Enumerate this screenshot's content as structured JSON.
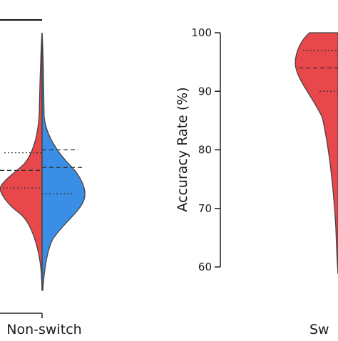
{
  "chart_data": [
    {
      "type": "violin",
      "categories": [
        "Non-switch"
      ],
      "split": true,
      "series": [
        {
          "color": "#e8474b",
          "quartiles": [
            73.5,
            76.5,
            79.5
          ],
          "range": [
            56,
            96
          ]
        },
        {
          "color": "#3a8ee6",
          "quartiles": [
            72.5,
            77,
            80
          ],
          "range": [
            56,
            84
          ]
        }
      ],
      "line_style": "dashed median, dotted quartiles",
      "significance_bar": true
    },
    {
      "type": "violin",
      "categories": [
        "Sw"
      ],
      "ylabel": "Accuracy Rate (%)",
      "ylim": [
        60,
        100
      ],
      "yticks": [
        60,
        70,
        80,
        90,
        100
      ],
      "series": [
        {
          "color": "#e8474b",
          "quartiles": [
            90,
            94,
            97
          ]
        }
      ]
    }
  ]
}
